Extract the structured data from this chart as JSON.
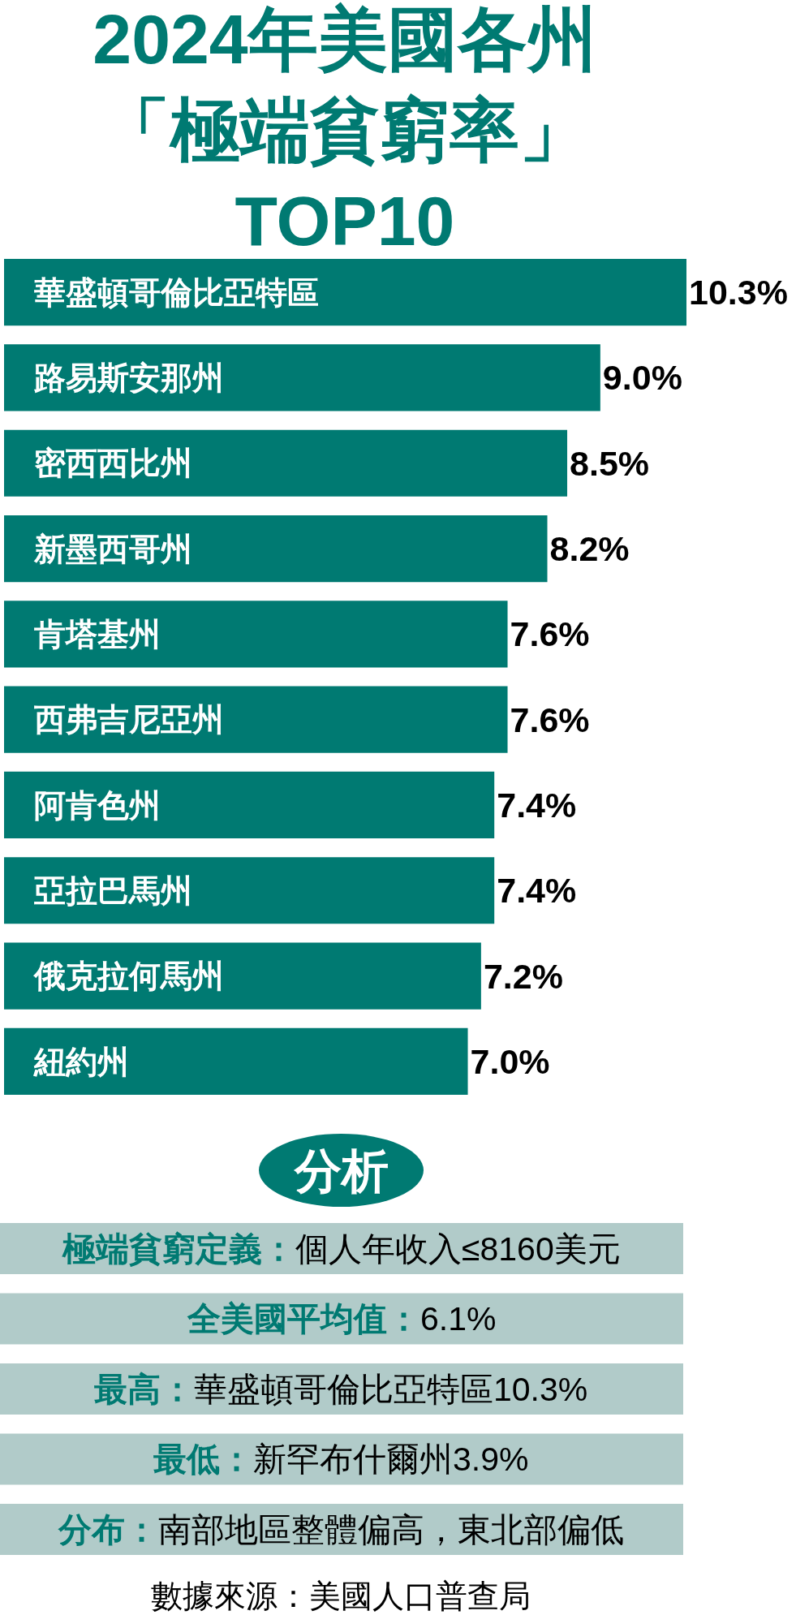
{
  "chart_data": {
    "type": "bar",
    "orientation": "horizontal",
    "title": "2024年美國各州「極端貧窮率」TOP10",
    "categories": [
      "華盛頓哥倫比亞特區",
      "路易斯安那州",
      "密西西比州",
      "新墨西哥州",
      "肯塔基州",
      "西弗吉尼亞州",
      "阿肯色州",
      "亞拉巴馬州",
      "俄克拉何馬州",
      "紐約州"
    ],
    "values": [
      10.3,
      9.0,
      8.5,
      8.2,
      7.6,
      7.6,
      7.4,
      7.4,
      7.2,
      7.0
    ],
    "value_labels": [
      "10.3%",
      "9.0%",
      "8.5%",
      "8.2%",
      "7.6%",
      "7.6%",
      "7.4%",
      "7.4%",
      "7.2%",
      "7.0%"
    ],
    "color": "#007a72",
    "tick_labels": "y",
    "annotations": [
      "分析",
      "極端貧窮定義：",
      "個人年收入≤8160美元",
      "全美國平均值：",
      "6.1%",
      "最高：",
      "華盛頓哥倫比亞特區10.3%",
      "最低：",
      "新罕布什爾州3.9%",
      "分布：",
      "南部地區整體偏高，東北部偏低",
      "數據來源：美國人口普查局"
    ]
  }
}
